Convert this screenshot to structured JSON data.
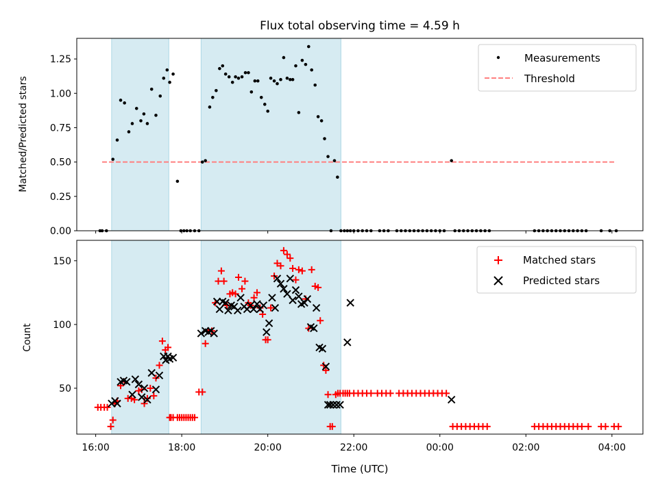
{
  "title": "Flux total observing time = 4.59 h",
  "xlabel": "Time (UTC)",
  "colors": {
    "highlight": "#add8e6",
    "threshold": "#ff7f7f",
    "matched": "#ff0000",
    "predicted": "#000000",
    "measure": "#000000"
  },
  "x_ticks": [
    {
      "h": 16,
      "label": "16:00"
    },
    {
      "h": 18,
      "label": "18:00"
    },
    {
      "h": 20,
      "label": "20:00"
    },
    {
      "h": 22,
      "label": "22:00"
    },
    {
      "h": 24,
      "label": "00:00"
    },
    {
      "h": 26,
      "label": "02:00"
    },
    {
      "h": 28,
      "label": "04:00"
    }
  ],
  "chart_data": [
    {
      "type": "scatter",
      "name": "ratio",
      "ylabel": "Matched/Predicted stars",
      "xlim": [
        15.56,
        28.72
      ],
      "ylim": [
        0,
        1.4
      ],
      "yticks": [
        "0.00",
        "0.25",
        "0.50",
        "0.75",
        "1.00",
        "1.25"
      ],
      "legend": {
        "position": "top-right",
        "entries": [
          "Measurements",
          "Threshold"
        ]
      },
      "threshold": {
        "value": 0.5,
        "x_range": [
          16.15,
          28.1
        ]
      },
      "shaded_ranges": [
        [
          16.37,
          17.7
        ],
        [
          18.45,
          21.7
        ]
      ],
      "x": [
        16.1,
        16.15,
        16.25,
        16.4,
        16.5,
        16.58,
        16.67,
        16.77,
        16.85,
        16.95,
        17.05,
        17.12,
        17.2,
        17.3,
        17.4,
        17.5,
        17.58,
        17.66,
        17.72,
        17.8,
        17.9,
        17.98,
        18.05,
        18.12,
        18.2,
        18.3,
        18.4,
        18.48,
        18.55,
        18.65,
        18.72,
        18.8,
        18.88,
        18.95,
        19.02,
        19.1,
        19.18,
        19.25,
        19.32,
        19.4,
        19.48,
        19.55,
        19.62,
        19.7,
        19.77,
        19.85,
        19.93,
        20.0,
        20.07,
        20.15,
        20.22,
        20.3,
        20.37,
        20.45,
        20.52,
        20.58,
        20.65,
        20.72,
        20.8,
        20.88,
        20.95,
        21.02,
        21.1,
        21.17,
        21.25,
        21.32,
        21.4,
        21.47,
        21.55,
        21.62,
        21.7,
        21.78,
        21.85,
        21.92,
        22.0,
        22.1,
        22.2,
        22.3,
        22.4,
        22.6,
        22.7,
        22.8,
        23.0,
        23.1,
        23.2,
        23.3,
        23.4,
        23.5,
        23.6,
        23.7,
        23.8,
        23.9,
        24.0,
        24.1,
        24.27,
        24.35,
        24.45,
        24.55,
        24.65,
        24.75,
        24.85,
        24.95,
        25.05,
        25.15,
        26.2,
        26.3,
        26.4,
        26.5,
        26.6,
        26.7,
        26.8,
        26.9,
        27.0,
        27.1,
        27.2,
        27.3,
        27.4,
        27.75,
        27.95,
        28.1
      ],
      "y": [
        0,
        0,
        0,
        0.52,
        0.66,
        0.95,
        0.93,
        0.72,
        0.78,
        0.89,
        0.8,
        0.85,
        0.78,
        1.03,
        0.84,
        0.98,
        1.11,
        1.17,
        1.08,
        1.14,
        0.36,
        0,
        0,
        0,
        0,
        0,
        0,
        0.5,
        0.51,
        0.9,
        0.97,
        1.02,
        1.18,
        1.2,
        1.14,
        1.12,
        1.08,
        1.12,
        1.11,
        1.12,
        1.15,
        1.15,
        1.01,
        1.09,
        1.09,
        0.97,
        0.92,
        0.87,
        1.11,
        1.09,
        1.07,
        1.1,
        1.26,
        1.11,
        1.1,
        1.1,
        1.2,
        0.86,
        1.24,
        1.21,
        1.34,
        1.17,
        1.06,
        0.83,
        0.8,
        0.67,
        0.54,
        0,
        0.51,
        0.39,
        0,
        0,
        0,
        0,
        0,
        0,
        0,
        0,
        0,
        0,
        0,
        0,
        0,
        0,
        0,
        0,
        0,
        0,
        0,
        0,
        0,
        0,
        0,
        0,
        0.51,
        0,
        0,
        0,
        0,
        0,
        0,
        0,
        0,
        0,
        0,
        0,
        0,
        0,
        0,
        0,
        0,
        0,
        0,
        0,
        0,
        0,
        0,
        0,
        0,
        0
      ]
    },
    {
      "type": "scatter",
      "name": "counts",
      "ylabel": "Count",
      "xlim": [
        15.56,
        28.72
      ],
      "ylim": [
        14,
        166
      ],
      "yticks": [
        "50",
        "100",
        "150"
      ],
      "legend": {
        "position": "top-right",
        "entries": [
          "Matched stars",
          "Predicted stars"
        ]
      },
      "shaded_ranges": [
        [
          16.37,
          17.7
        ],
        [
          18.45,
          21.7
        ]
      ],
      "series": [
        {
          "name": "Matched stars",
          "x": [
            16.05,
            16.12,
            16.2,
            16.27,
            16.35,
            16.4,
            16.45,
            16.5,
            16.58,
            16.67,
            16.75,
            16.83,
            16.9,
            17.0,
            17.07,
            17.13,
            17.2,
            17.27,
            17.35,
            17.4,
            17.48,
            17.55,
            17.62,
            17.68,
            17.72,
            17.75,
            17.8,
            17.9,
            17.95,
            18.0,
            18.05,
            18.1,
            18.15,
            18.2,
            18.25,
            18.3,
            18.4,
            18.48,
            18.55,
            18.62,
            18.7,
            18.78,
            18.85,
            18.92,
            18.98,
            19.05,
            19.12,
            19.18,
            19.25,
            19.32,
            19.4,
            19.47,
            19.55,
            19.6,
            19.68,
            19.75,
            19.82,
            19.88,
            19.95,
            20.0,
            20.07,
            20.15,
            20.22,
            20.3,
            20.37,
            20.45,
            20.52,
            20.58,
            20.65,
            20.72,
            20.8,
            20.88,
            20.95,
            21.02,
            21.1,
            21.17,
            21.22,
            21.3,
            21.35,
            21.4,
            21.45,
            21.5,
            21.58,
            21.63,
            21.68,
            21.75,
            21.8,
            21.85,
            21.9,
            22.0,
            22.1,
            22.2,
            22.3,
            22.4,
            22.55,
            22.65,
            22.75,
            22.85,
            23.05,
            23.15,
            23.25,
            23.35,
            23.45,
            23.55,
            23.65,
            23.75,
            23.85,
            23.95,
            24.05,
            24.15,
            24.3,
            24.4,
            24.5,
            24.6,
            24.7,
            24.8,
            24.9,
            25.0,
            25.1,
            26.2,
            26.3,
            26.4,
            26.5,
            26.6,
            26.7,
            26.8,
            26.9,
            27.0,
            27.1,
            27.2,
            27.3,
            27.45,
            27.75,
            27.85,
            28.05,
            28.15
          ],
          "y": [
            35,
            35,
            35,
            35,
            20,
            25,
            38,
            40,
            52,
            55,
            42,
            42,
            41,
            48,
            49,
            38,
            42,
            50,
            44,
            58,
            68,
            87,
            80,
            82,
            27,
            27,
            27,
            27,
            27,
            27,
            27,
            27,
            27,
            27,
            27,
            27,
            47,
            47,
            85,
            95,
            95,
            117,
            134,
            142,
            134,
            115,
            124,
            125,
            124,
            137,
            128,
            134,
            117,
            115,
            121,
            125,
            113,
            108,
            88,
            88,
            113,
            138,
            148,
            146,
            158,
            155,
            152,
            144,
            135,
            143,
            142,
            120,
            97,
            143,
            130,
            129,
            103,
            68,
            64,
            45,
            20,
            20,
            45,
            46,
            46,
            46,
            46,
            46,
            46,
            46,
            46,
            46,
            46,
            46,
            46,
            46,
            46,
            46,
            46,
            46,
            46,
            46,
            46,
            46,
            46,
            46,
            46,
            46,
            46,
            46,
            20,
            20,
            20,
            20,
            20,
            20,
            20,
            20,
            20,
            20,
            20,
            20,
            20,
            20,
            20,
            20,
            20,
            20,
            20,
            20,
            20,
            20,
            20,
            20,
            20,
            20
          ]
        },
        {
          "name": "Predicted stars",
          "x": [
            16.37,
            16.45,
            16.5,
            16.58,
            16.65,
            16.72,
            16.85,
            16.92,
            17.0,
            17.07,
            17.13,
            17.2,
            17.3,
            17.4,
            17.48,
            17.58,
            17.63,
            17.68,
            17.72,
            17.8,
            18.45,
            18.55,
            18.62,
            18.68,
            18.75,
            18.82,
            18.88,
            18.95,
            19.02,
            19.08,
            19.15,
            19.22,
            19.3,
            19.37,
            19.45,
            19.52,
            19.6,
            19.67,
            19.75,
            19.82,
            19.9,
            19.97,
            20.03,
            20.1,
            20.17,
            20.22,
            20.3,
            20.37,
            20.45,
            20.52,
            20.58,
            20.65,
            20.72,
            20.78,
            20.85,
            20.92,
            21.0,
            21.07,
            21.13,
            21.2,
            21.27,
            21.35,
            21.4,
            21.45,
            21.52,
            21.6,
            21.68,
            21.85,
            21.92,
            24.27
          ],
          "y": [
            38,
            40,
            38,
            55,
            56,
            55,
            45,
            57,
            53,
            43,
            50,
            41,
            62,
            49,
            60,
            75,
            72,
            75,
            73,
            74,
            93,
            95,
            94,
            95,
            93,
            118,
            112,
            118,
            117,
            111,
            115,
            114,
            111,
            121,
            114,
            112,
            115,
            112,
            116,
            112,
            115,
            94,
            101,
            121,
            113,
            136,
            132,
            128,
            124,
            136,
            119,
            127,
            122,
            116,
            117,
            120,
            98,
            97,
            113,
            82,
            81,
            67,
            37,
            37,
            37,
            37,
            37,
            86,
            117,
            41
          ]
        }
      ]
    }
  ]
}
